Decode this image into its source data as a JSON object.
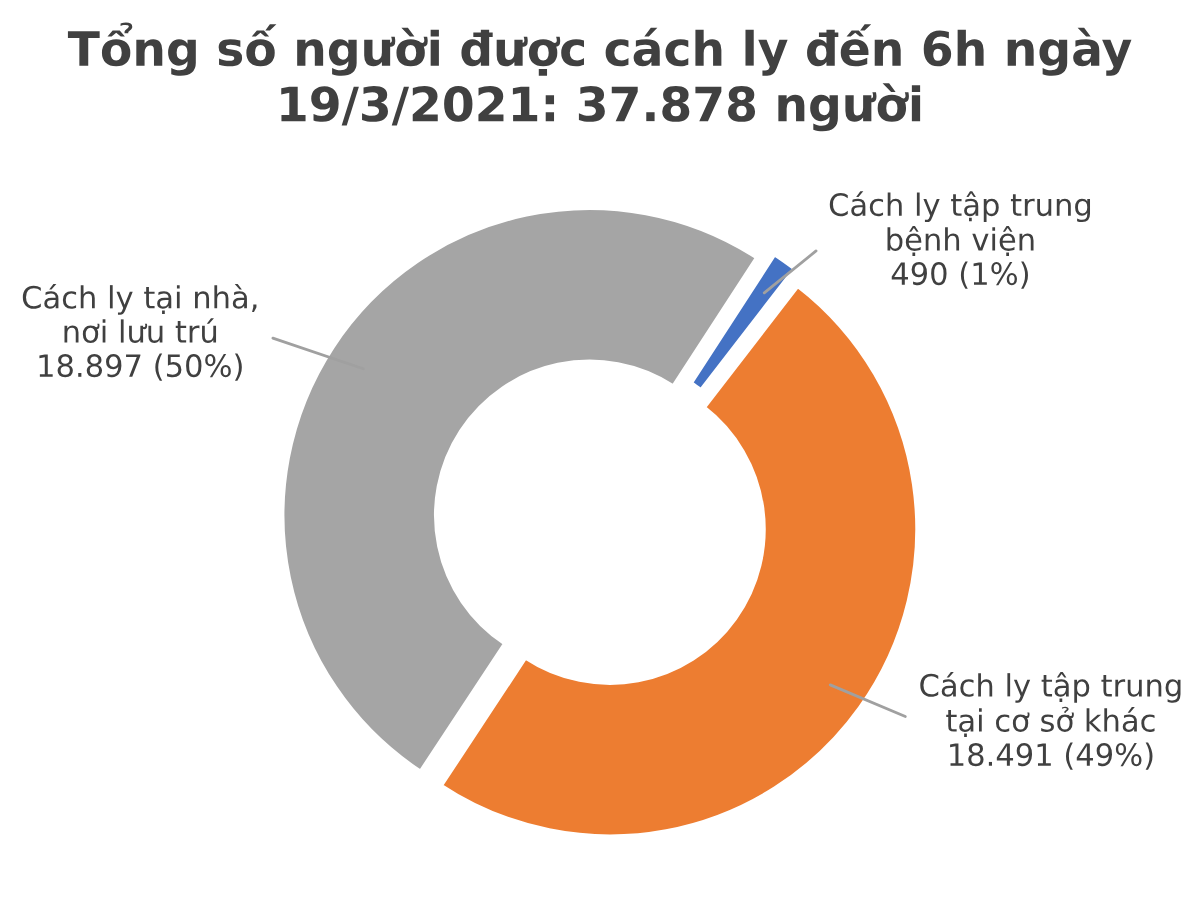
{
  "chart_data": {
    "type": "donut",
    "title": "Tổng số người được cách ly đến 6h ngày\n19/3/2021: 37.878 người",
    "categories": [
      "Cách ly tập trung\nbệnh viện",
      "Cách ly tập trung\ntại cơ sở khác",
      "Cách ly tại nhà,\nnơi lưu trú"
    ],
    "values": [
      490,
      18491,
      18897
    ],
    "value_labels": [
      "490 (1%)",
      "18.491 (49%)",
      "18.897 (50%)"
    ],
    "colors": [
      "#4472c4",
      "#ed7d31",
      "#a5a5a5"
    ],
    "legend": false
  }
}
